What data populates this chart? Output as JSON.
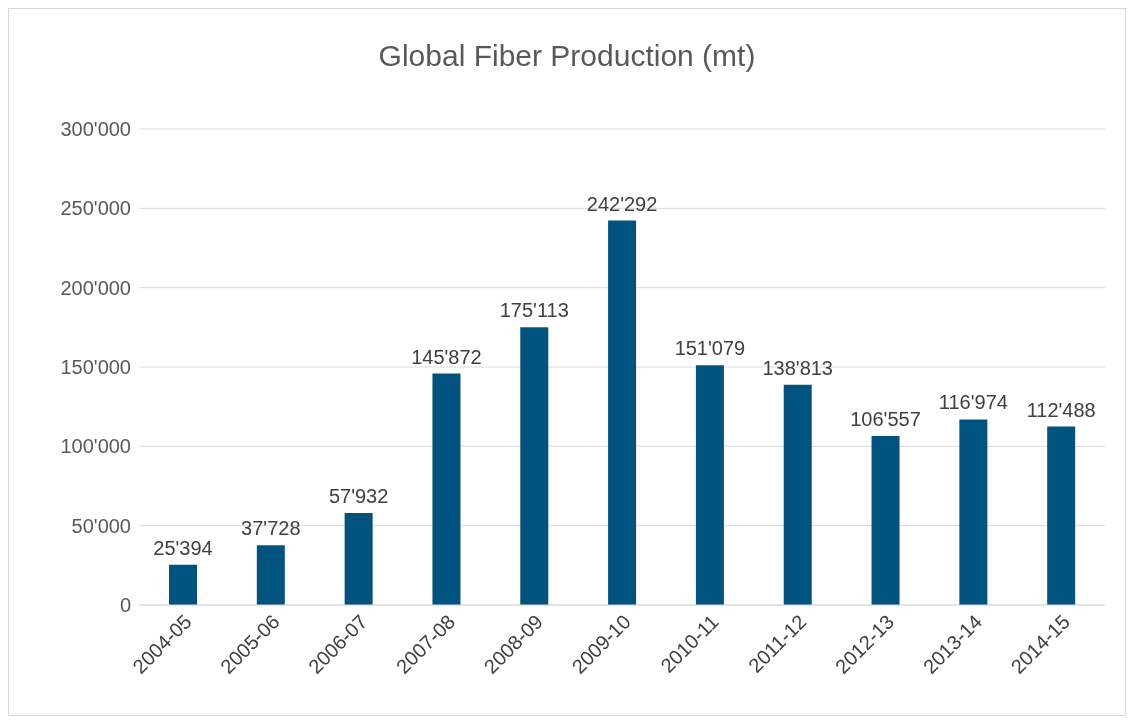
{
  "chart_data": {
    "type": "bar",
    "title": "Global Fiber Production (mt)",
    "categories": [
      "2004-05",
      "2005-06",
      "2006-07",
      "2007-08",
      "2008-09",
      "2009-10",
      "2010-11",
      "2011-12",
      "2012-13",
      "2013-14",
      "2014-15"
    ],
    "values": [
      25394,
      37728,
      57932,
      145872,
      175113,
      242292,
      151079,
      138813,
      106557,
      116974,
      112488
    ],
    "value_labels": [
      "25'394",
      "37'728",
      "57'932",
      "145'872",
      "175'113",
      "242'292",
      "151'079",
      "138'813",
      "106'557",
      "116'974",
      "112'488"
    ],
    "color": "#00527f",
    "ylim": [
      0,
      300000
    ],
    "yticks": [
      {
        "value": 0,
        "label": "0"
      },
      {
        "value": 50000,
        "label": "50'000"
      },
      {
        "value": 100000,
        "label": "100'000"
      },
      {
        "value": 150000,
        "label": "150'000"
      },
      {
        "value": 200000,
        "label": "200'000"
      },
      {
        "value": 250000,
        "label": "250'000"
      },
      {
        "value": 300000,
        "label": "300'000"
      }
    ],
    "grid": "y"
  }
}
